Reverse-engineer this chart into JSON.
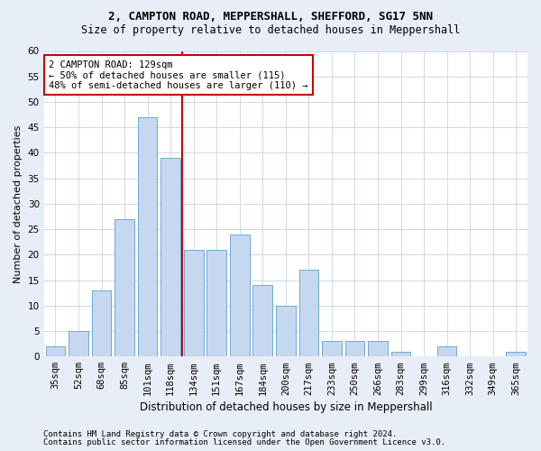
{
  "title1": "2, CAMPTON ROAD, MEPPERSHALL, SHEFFORD, SG17 5NN",
  "title2": "Size of property relative to detached houses in Meppershall",
  "xlabel": "Distribution of detached houses by size in Meppershall",
  "ylabel": "Number of detached properties",
  "footnote1": "Contains HM Land Registry data © Crown copyright and database right 2024.",
  "footnote2": "Contains public sector information licensed under the Open Government Licence v3.0.",
  "bar_categories": [
    "35sqm",
    "52sqm",
    "68sqm",
    "85sqm",
    "101sqm",
    "118sqm",
    "134sqm",
    "151sqm",
    "167sqm",
    "184sqm",
    "200sqm",
    "217sqm",
    "233sqm",
    "250sqm",
    "266sqm",
    "283sqm",
    "299sqm",
    "316sqm",
    "332sqm",
    "349sqm",
    "365sqm"
  ],
  "bar_values": [
    2,
    5,
    13,
    27,
    47,
    39,
    21,
    21,
    24,
    14,
    10,
    17,
    3,
    3,
    3,
    1,
    0,
    2,
    0,
    0,
    1
  ],
  "bar_color": "#c5d8f0",
  "bar_edgecolor": "#6aaad4",
  "vline_x": 5.5,
  "vline_color": "#cc0000",
  "annotation_text": "2 CAMPTON ROAD: 129sqm\n← 50% of detached houses are smaller (115)\n48% of semi-detached houses are larger (110) →",
  "annotation_box_color": "white",
  "annotation_box_edgecolor": "#cc0000",
  "ylim": [
    0,
    60
  ],
  "yticks": [
    0,
    5,
    10,
    15,
    20,
    25,
    30,
    35,
    40,
    45,
    50,
    55,
    60
  ],
  "grid_color": "#d0d8e8",
  "fig_bg_color": "#e8eef8",
  "plot_bg_color": "#ffffff",
  "title1_fontsize": 9,
  "title2_fontsize": 8.5,
  "ylabel_fontsize": 8,
  "xlabel_fontsize": 8.5,
  "tick_fontsize": 7.5,
  "annot_fontsize": 7.5,
  "footnote_fontsize": 6.5
}
